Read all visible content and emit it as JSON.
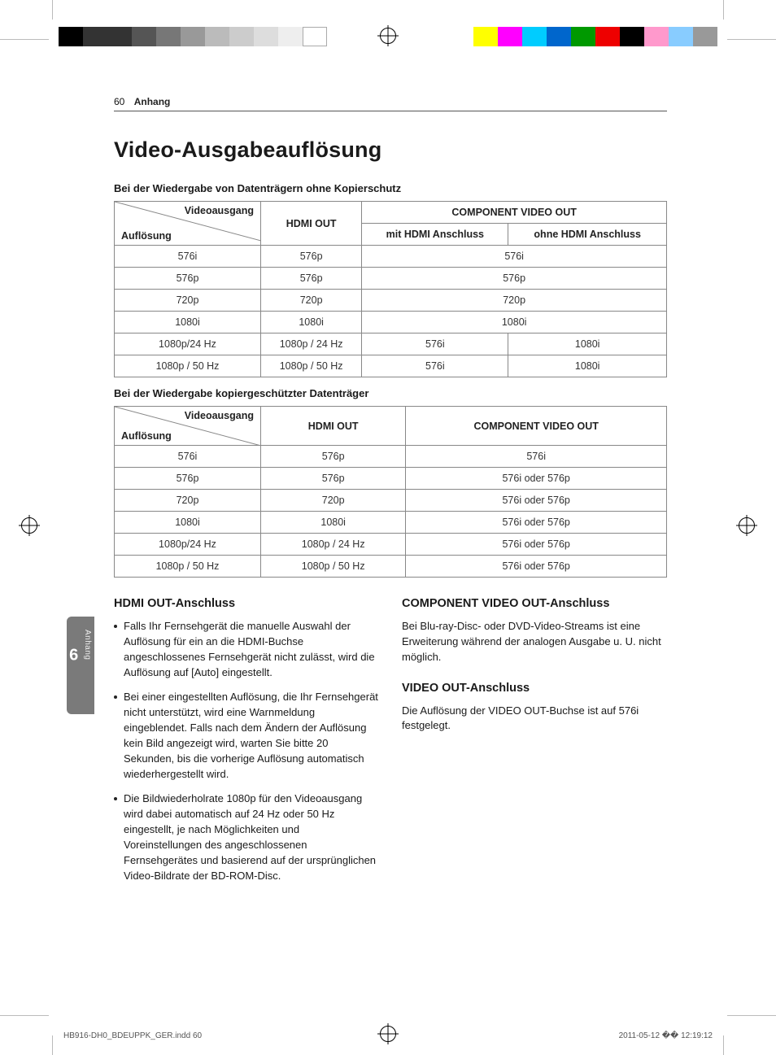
{
  "header": {
    "page_number": "60",
    "section": "Anhang"
  },
  "title": "Video-Ausgabeauflösung",
  "sidetab": {
    "number": "6",
    "label": "Anhang"
  },
  "table1": {
    "caption": "Bei der Wiedergabe von Datenträgern ohne Kopierschutz",
    "diag_top": "Videoausgang",
    "diag_bottom": "Auflösung",
    "col_hdmi": "HDMI OUT",
    "col_comp": "COMPONENT VIDEO OUT",
    "col_comp_with": "mit HDMI Anschluss",
    "col_comp_without": "ohne HDMI Anschluss",
    "rows": [
      {
        "res": "576i",
        "hdmi": "576p",
        "comp_span": "576i"
      },
      {
        "res": "576p",
        "hdmi": "576p",
        "comp_span": "576p"
      },
      {
        "res": "720p",
        "hdmi": "720p",
        "comp_span": "720p"
      },
      {
        "res": "1080i",
        "hdmi": "1080i",
        "comp_span": "1080i"
      },
      {
        "res": "1080p/24 Hz",
        "hdmi": "1080p / 24 Hz",
        "comp_with": "576i",
        "comp_without": "1080i"
      },
      {
        "res": "1080p / 50 Hz",
        "hdmi": "1080p / 50 Hz",
        "comp_with": "576i",
        "comp_without": "1080i"
      }
    ]
  },
  "table2": {
    "caption": "Bei der Wiedergabe kopiergeschützter Datenträger",
    "diag_top": "Videoausgang",
    "diag_bottom": "Auflösung",
    "col_hdmi": "HDMI OUT",
    "col_comp": "COMPONENT VIDEO OUT",
    "rows": [
      {
        "res": "576i",
        "hdmi": "576p",
        "comp": "576i"
      },
      {
        "res": "576p",
        "hdmi": "576p",
        "comp": "576i oder 576p"
      },
      {
        "res": "720p",
        "hdmi": "720p",
        "comp": "576i oder 576p"
      },
      {
        "res": "1080i",
        "hdmi": "1080i",
        "comp": "576i oder 576p"
      },
      {
        "res": "1080p/24 Hz",
        "hdmi": "1080p / 24 Hz",
        "comp": "576i oder 576p"
      },
      {
        "res": "1080p / 50 Hz",
        "hdmi": "1080p / 50 Hz",
        "comp": "576i oder 576p"
      }
    ]
  },
  "left_col": {
    "h": "HDMI OUT-Anschluss",
    "b1": "Falls Ihr Fernsehgerät die manuelle Auswahl der Auflösung für ein an die HDMI-Buchse angeschlossenes Fernsehgerät nicht zulässt, wird die Auflösung auf [Auto] eingestellt.",
    "b2": "Bei einer eingestellten Auflösung, die Ihr Fernsehgerät nicht unterstützt, wird eine Warnmeldung eingeblendet. Falls nach dem Ändern der Auflösung kein Bild angezeigt wird, warten Sie bitte 20 Sekunden, bis die vorherige Auflösung automatisch wiederhergestellt wird.",
    "b3": "Die Bildwiederholrate 1080p für den Videoausgang wird dabei automatisch auf 24 Hz oder 50 Hz eingestellt, je nach Möglichkeiten und Voreinstellungen des angeschlossenen Fernsehgerätes und basierend auf der ursprünglichen Video-Bildrate der BD-ROM-Disc."
  },
  "right_col": {
    "h1": "COMPONENT VIDEO OUT-Anschluss",
    "p1": "Bei Blu-ray-Disc- oder DVD-Video-Streams ist eine Erweiterung während der analogen Ausgabe u. U. nicht möglich.",
    "h2": "VIDEO OUT-Anschluss",
    "p2": "Die Auflösung der VIDEO OUT-Buchse ist auf 576i festgelegt."
  },
  "footer": {
    "left": "HB916-DH0_BDEUPPK_GER.indd   60",
    "right": "2011-05-12   �� 12:19:12"
  }
}
